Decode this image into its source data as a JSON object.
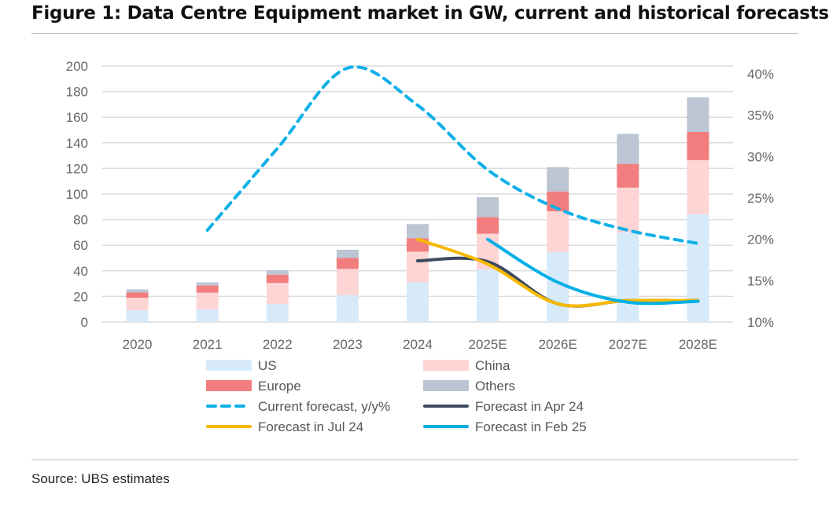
{
  "title": "Figure 1: Data Centre Equipment market in GW, current and historical forecasts",
  "source": "Source: UBS estimates",
  "chart_data": {
    "type": "bar",
    "stacked": true,
    "categories": [
      "2020",
      "2021",
      "2022",
      "2023",
      "2024",
      "2025E",
      "2026E",
      "2027E",
      "2028E"
    ],
    "y_left": {
      "ylim": [
        0,
        200
      ],
      "ticks": [
        0,
        20,
        40,
        60,
        80,
        100,
        120,
        140,
        160,
        180,
        200
      ],
      "tick_labels": [
        "0",
        "20",
        "40",
        "60",
        "80",
        "100",
        "120",
        "140",
        "160",
        "180",
        "200"
      ]
    },
    "y_right": {
      "ylim": [
        0.1,
        0.41
      ],
      "ticks": [
        0.1,
        0.15,
        0.2,
        0.25,
        0.3,
        0.35,
        0.4
      ],
      "tick_labels": [
        "10%",
        "15%",
        "20%",
        "25%",
        "30%",
        "35%",
        "40%"
      ]
    },
    "grid": true,
    "legend_position": "bottom",
    "series": [
      {
        "name": "US",
        "axis": "left",
        "kind": "bar",
        "color": "#d6eafa",
        "values": [
          9,
          10,
          14,
          21,
          31,
          41,
          54.5,
          70,
          84
        ]
      },
      {
        "name": "China",
        "axis": "left",
        "kind": "bar",
        "color": "#fdd5d5",
        "values": [
          10,
          13,
          16.5,
          20.5,
          24,
          28,
          32,
          35,
          42.5
        ]
      },
      {
        "name": "Europe",
        "axis": "left",
        "kind": "bar",
        "color": "#f27d7e",
        "values": [
          4,
          5.5,
          6.5,
          8.5,
          10.5,
          13,
          15.5,
          18.5,
          22
        ]
      },
      {
        "name": "Others",
        "axis": "left",
        "kind": "bar",
        "color": "#bcc5d3",
        "values": [
          2.5,
          2.5,
          3.5,
          6.5,
          11,
          15.5,
          19,
          23.5,
          27
        ]
      },
      {
        "name": "Current forecast, y/y%",
        "axis": "right",
        "kind": "line",
        "dash": true,
        "color": "#0fb0e8",
        "values": [
          null,
          0.211,
          0.31,
          0.407,
          0.362,
          0.284,
          0.237,
          0.211,
          0.195
        ]
      },
      {
        "name": "Forecast in Apr 24",
        "axis": "right",
        "kind": "line",
        "color": "#3d4a60",
        "values": [
          null,
          null,
          null,
          null,
          0.174,
          0.173,
          0.122,
          0.126,
          0.126
        ]
      },
      {
        "name": "Forecast in Jul 24",
        "axis": "right",
        "kind": "line",
        "color": "#f7b900",
        "values": [
          null,
          null,
          null,
          null,
          0.2,
          0.17,
          0.122,
          0.126,
          0.126
        ]
      },
      {
        "name": "Forecast in Feb 25",
        "axis": "right",
        "kind": "line",
        "color": "#00b0e6",
        "values": [
          null,
          null,
          null,
          null,
          null,
          0.2,
          0.148,
          0.124,
          0.125
        ]
      }
    ]
  }
}
